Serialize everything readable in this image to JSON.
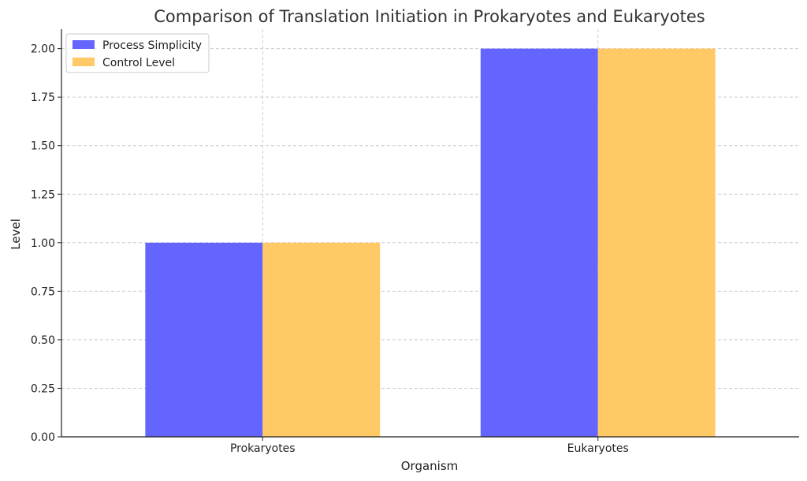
{
  "chart_data": {
    "type": "bar",
    "title": "Comparison of Translation Initiation in Prokaryotes and Eukaryotes",
    "xlabel": "Organism",
    "ylabel": "Level",
    "categories": [
      "Prokaryotes",
      "Eukaryotes"
    ],
    "series": [
      {
        "name": "Process Simplicity",
        "values": [
          1,
          2
        ],
        "color": "#6464ff"
      },
      {
        "name": "Control Level",
        "values": [
          1,
          2
        ],
        "color": "#ffc966"
      }
    ],
    "ylim": [
      0,
      2.1
    ],
    "yticks": [
      "0.00",
      "0.25",
      "0.50",
      "0.75",
      "1.00",
      "1.25",
      "1.50",
      "1.75",
      "2.00"
    ],
    "grid": true,
    "legend_position": "top-left"
  }
}
